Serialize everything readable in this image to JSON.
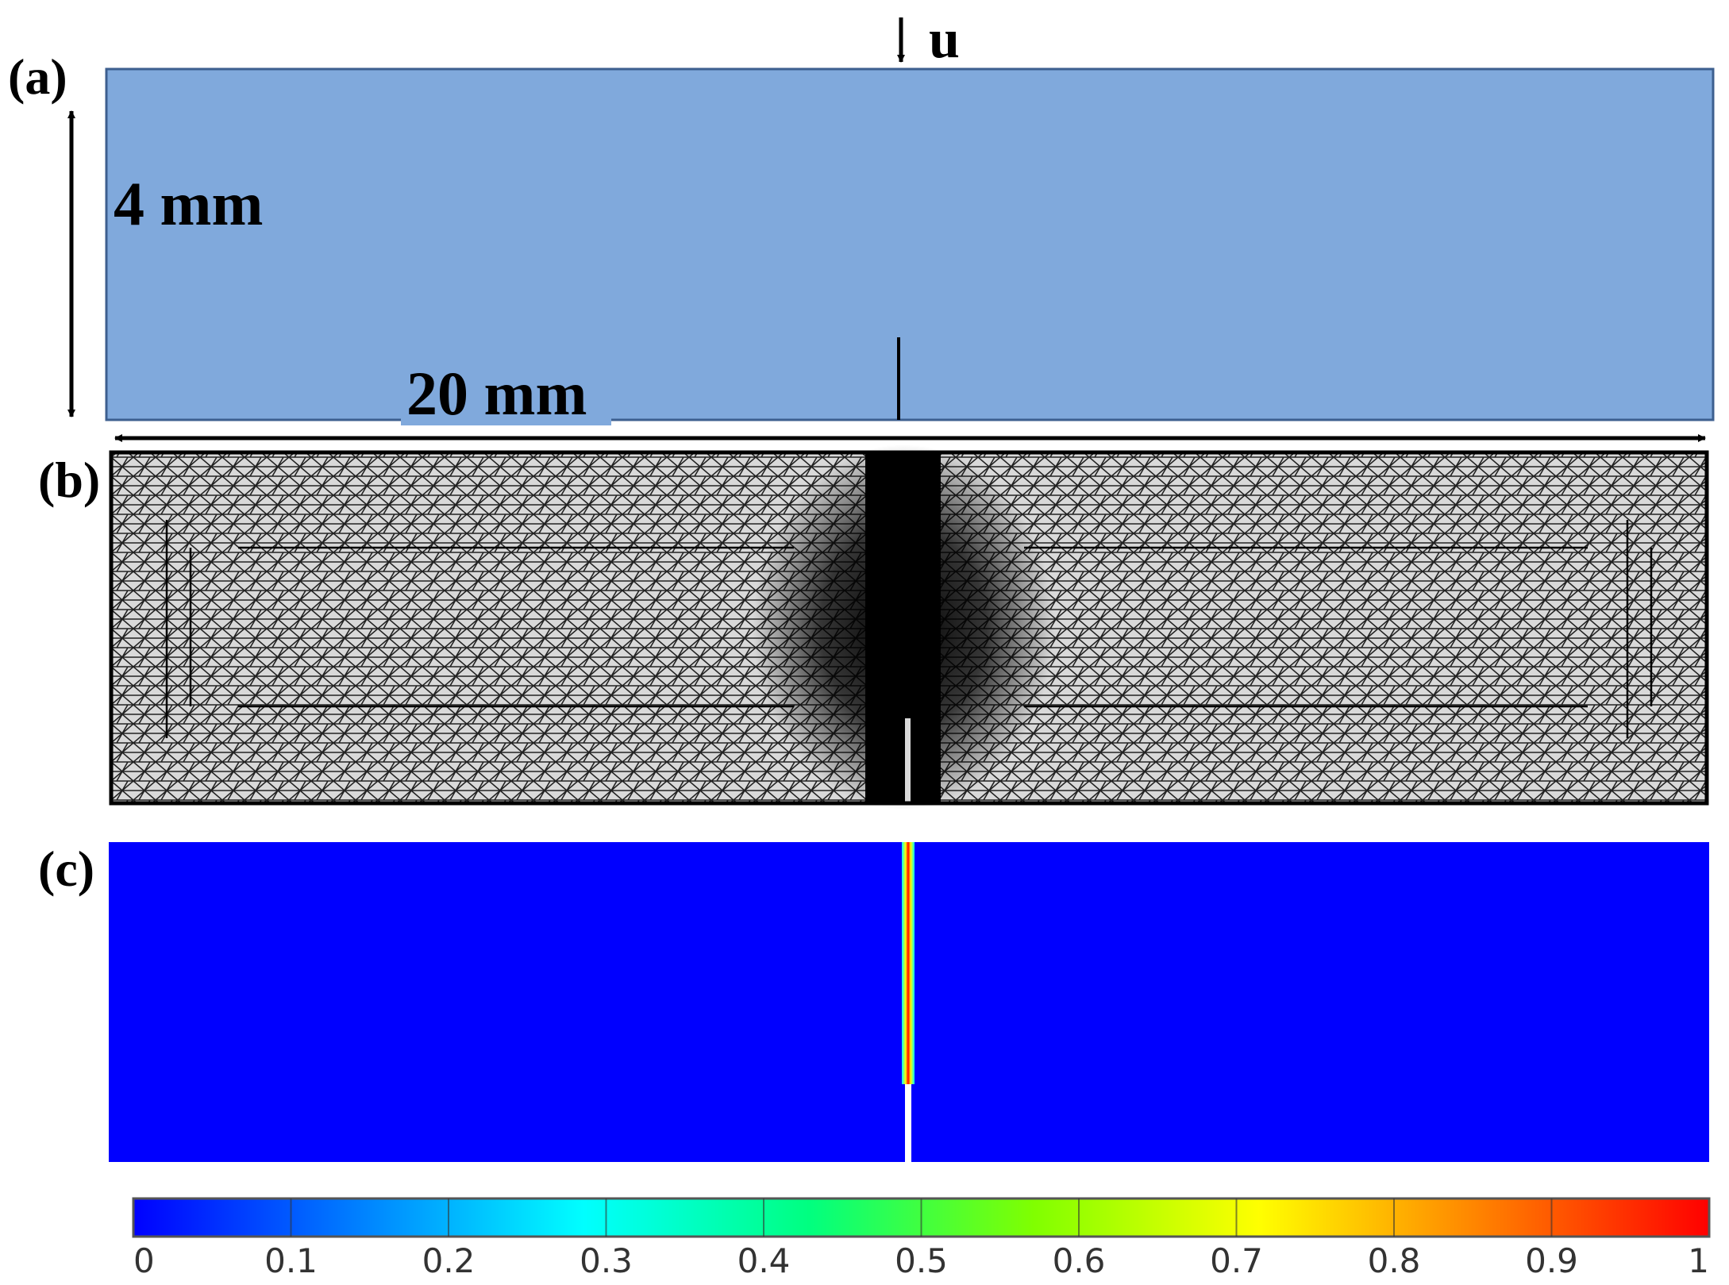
{
  "panels": {
    "a": {
      "label": "(a)",
      "height_label": "4 mm",
      "width_label": "20 mm",
      "load_label": "u",
      "fill": "#80a9dc"
    },
    "b": {
      "label": "(b)"
    },
    "c": {
      "label": "(c)",
      "field_color": "#0000ff"
    }
  },
  "colorbar": {
    "min": 0,
    "max": 1,
    "ticks": [
      "0",
      "0.1",
      "0.2",
      "0.3",
      "0.4",
      "0.5",
      "0.6",
      "0.7",
      "0.8",
      "0.9",
      "1"
    ],
    "colormap": [
      "#0000ff",
      "#0080ff",
      "#00ffff",
      "#00ff80",
      "#80ff00",
      "#ffff00",
      "#ff8000",
      "#ff0000"
    ]
  }
}
